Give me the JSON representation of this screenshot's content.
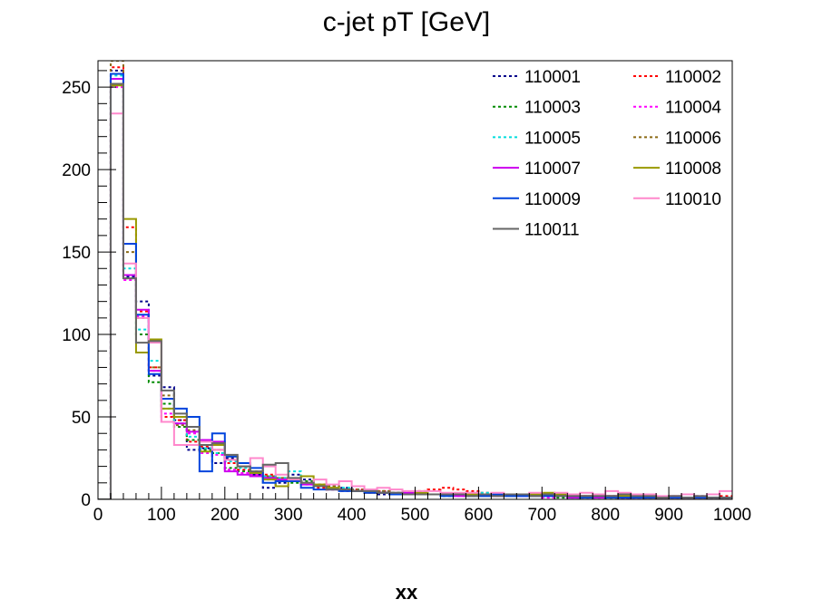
{
  "chart_data": {
    "type": "step-histogram",
    "title": "c-jet pT [GeV]",
    "xlabel": "xx",
    "ylabel": "",
    "xlim": [
      0,
      1000
    ],
    "ylim": [
      0,
      266
    ],
    "x_ticks": [
      0,
      100,
      200,
      300,
      400,
      500,
      600,
      700,
      800,
      900,
      1000
    ],
    "y_ticks": [
      0,
      50,
      100,
      150,
      200,
      250
    ],
    "bin_edges": [
      0,
      20,
      40,
      60,
      80,
      100,
      120,
      140,
      160,
      180,
      200,
      220,
      240,
      260,
      280,
      300,
      320,
      340,
      360,
      380,
      400,
      420,
      440,
      460,
      480,
      500,
      520,
      540,
      560,
      580,
      600,
      620,
      640,
      660,
      680,
      700,
      720,
      740,
      760,
      780,
      800,
      820,
      840,
      860,
      880,
      900,
      920,
      940,
      960,
      980,
      1000
    ],
    "legend": {
      "position": "top-right",
      "columns": 2
    },
    "series": [
      {
        "name": "110001",
        "color": "#00008b",
        "style": "dotted",
        "values": [
          0,
          260,
          135,
          120,
          75,
          68,
          48,
          30,
          31,
          22,
          25,
          20,
          15,
          7,
          10,
          15,
          12,
          8,
          6,
          7,
          5,
          4,
          3,
          3,
          3,
          4,
          3,
          3,
          3,
          4,
          3,
          3,
          2,
          2,
          3,
          2,
          2,
          1,
          2,
          2,
          2,
          1,
          2,
          2,
          1,
          2,
          1,
          2,
          1,
          1
        ]
      },
      {
        "name": "110002",
        "color": "#ff0000",
        "style": "dotted",
        "values": [
          0,
          262,
          165,
          114,
          80,
          50,
          48,
          35,
          32,
          30,
          22,
          18,
          16,
          15,
          13,
          12,
          10,
          7,
          6,
          5,
          6,
          4,
          5,
          4,
          4,
          5,
          6,
          7,
          6,
          5,
          4,
          3,
          3,
          2,
          3,
          3,
          2,
          2,
          2,
          2,
          2,
          2,
          3,
          2,
          1,
          2,
          1,
          1,
          1,
          2
        ]
      },
      {
        "name": "110003",
        "color": "#008b00",
        "style": "dotted",
        "values": [
          0,
          255,
          134,
          100,
          71,
          58,
          44,
          36,
          30,
          28,
          19,
          17,
          14,
          13,
          11,
          10,
          11,
          9,
          8,
          6,
          5,
          5,
          4,
          4,
          3,
          3,
          3,
          2,
          3,
          2,
          3,
          2,
          3,
          2,
          2,
          2,
          1,
          2,
          1,
          2,
          1,
          1,
          2,
          1,
          1,
          1,
          1,
          1,
          1,
          1
        ]
      },
      {
        "name": "110004",
        "color": "#ff00ff",
        "style": "dotted",
        "values": [
          0,
          250,
          133,
          111,
          78,
          52,
          46,
          40,
          28,
          27,
          18,
          16,
          15,
          12,
          12,
          11,
          9,
          8,
          7,
          6,
          5,
          5,
          4,
          4,
          3,
          3,
          3,
          3,
          2,
          3,
          2,
          3,
          2,
          2,
          2,
          1,
          2,
          2,
          1,
          1,
          2,
          1,
          1,
          1,
          1,
          1,
          1,
          1,
          1,
          1
        ]
      },
      {
        "name": "110005",
        "color": "#00dddd",
        "style": "dotted",
        "values": [
          0,
          257,
          140,
          103,
          84,
          55,
          46,
          38,
          31,
          28,
          23,
          19,
          16,
          14,
          13,
          17,
          10,
          8,
          7,
          7,
          6,
          5,
          5,
          4,
          4,
          3,
          3,
          3,
          3,
          3,
          4,
          3,
          2,
          2,
          2,
          2,
          2,
          1,
          2,
          1,
          2,
          1,
          1,
          1,
          1,
          1,
          1,
          1,
          1,
          1
        ]
      },
      {
        "name": "110006",
        "color": "#8b6914",
        "style": "dotted",
        "values": [
          0,
          266,
          150,
          110,
          80,
          63,
          45,
          42,
          33,
          30,
          24,
          20,
          17,
          14,
          13,
          12,
          10,
          9,
          8,
          6,
          6,
          5,
          5,
          4,
          4,
          4,
          3,
          3,
          3,
          3,
          3,
          3,
          3,
          2,
          2,
          2,
          2,
          2,
          2,
          2,
          1,
          1,
          1,
          1,
          1,
          1,
          1,
          1,
          1,
          1
        ]
      },
      {
        "name": "110007",
        "color": "#cc00ee",
        "style": "solid",
        "values": [
          0,
          255,
          136,
          115,
          78,
          47,
          46,
          41,
          36,
          35,
          17,
          15,
          14,
          13,
          12,
          11,
          9,
          8,
          6,
          6,
          5,
          4,
          4,
          3,
          4,
          3,
          3,
          3,
          2,
          3,
          2,
          2,
          2,
          2,
          2,
          2,
          2,
          1,
          2,
          1,
          2,
          1,
          1,
          1,
          1,
          1,
          1,
          1,
          1,
          1
        ]
      },
      {
        "name": "110008",
        "color": "#999900",
        "style": "solid",
        "values": [
          0,
          251,
          170,
          89,
          97,
          55,
          50,
          44,
          29,
          33,
          26,
          20,
          16,
          12,
          8,
          12,
          14,
          9,
          7,
          6,
          5,
          4,
          4,
          3,
          3,
          4,
          3,
          3,
          3,
          3,
          2,
          3,
          2,
          3,
          3,
          4,
          3,
          2,
          2,
          2,
          2,
          2,
          2,
          1,
          1,
          1,
          1,
          1,
          1,
          1
        ]
      },
      {
        "name": "110009",
        "color": "#0044dd",
        "style": "solid",
        "values": [
          0,
          258,
          155,
          112,
          76,
          61,
          55,
          50,
          17,
          40,
          26,
          22,
          19,
          10,
          11,
          11,
          7,
          6,
          6,
          5,
          5,
          4,
          4,
          3,
          3,
          3,
          3,
          2,
          3,
          2,
          2,
          3,
          2,
          2,
          2,
          2,
          2,
          2,
          1,
          2,
          1,
          1,
          1,
          1,
          1,
          1,
          1,
          1,
          1,
          1
        ]
      },
      {
        "name": "110010",
        "color": "#ff88cc",
        "style": "solid",
        "values": [
          0,
          234,
          143,
          110,
          95,
          47,
          33,
          33,
          35,
          30,
          24,
          20,
          25,
          20,
          15,
          12,
          10,
          12,
          9,
          11,
          8,
          6,
          7,
          6,
          5,
          5,
          5,
          4,
          4,
          4,
          3,
          4,
          3,
          3,
          4,
          3,
          4,
          3,
          4,
          3,
          5,
          4,
          3,
          3,
          2,
          2,
          3,
          2,
          3,
          5
        ]
      },
      {
        "name": "110011",
        "color": "#666666",
        "style": "solid",
        "values": [
          0,
          252,
          134,
          95,
          96,
          66,
          52,
          44,
          33,
          34,
          27,
          20,
          17,
          21,
          22,
          13,
          10,
          8,
          6,
          6,
          5,
          5,
          4,
          4,
          3,
          3,
          3,
          3,
          3,
          2,
          3,
          2,
          3,
          3,
          2,
          3,
          2,
          2,
          2,
          2,
          2,
          3,
          2,
          2,
          1,
          2,
          1,
          2,
          1,
          1
        ]
      }
    ]
  }
}
